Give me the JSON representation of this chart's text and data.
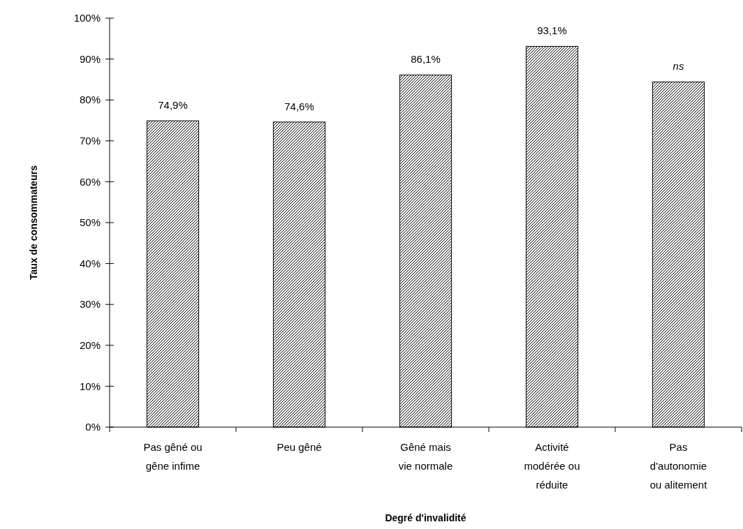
{
  "chart_data": {
    "type": "bar",
    "xlabel": "Degré d'invalidité",
    "ylabel": "Taux de consommateurs",
    "categories": [
      "Pas gêné ou gêne infime",
      "Peu gêné",
      "Gêné mais vie normale",
      "Activité modérée ou réduite",
      "Pas d'autonomie ou alitement"
    ],
    "values": [
      74.9,
      74.6,
      86.1,
      93.1,
      84.4
    ],
    "value_labels": [
      "74,9%",
      "74,6%",
      "86,1%",
      "93,1%",
      "ns"
    ],
    "color": "#000000",
    "ylim": [
      0,
      100
    ],
    "yticks": [
      {
        "value": 0,
        "label": "0%"
      },
      {
        "value": 10,
        "label": "10%"
      },
      {
        "value": 20,
        "label": "20%"
      },
      {
        "value": 30,
        "label": "30%"
      },
      {
        "value": 40,
        "label": "40%"
      },
      {
        "value": 50,
        "label": "50%"
      },
      {
        "value": 60,
        "label": "60%"
      },
      {
        "value": 70,
        "label": "70%"
      },
      {
        "value": 80,
        "label": "80%"
      },
      {
        "value": 90,
        "label": "90%"
      },
      {
        "value": 100,
        "label": "100%"
      }
    ]
  }
}
